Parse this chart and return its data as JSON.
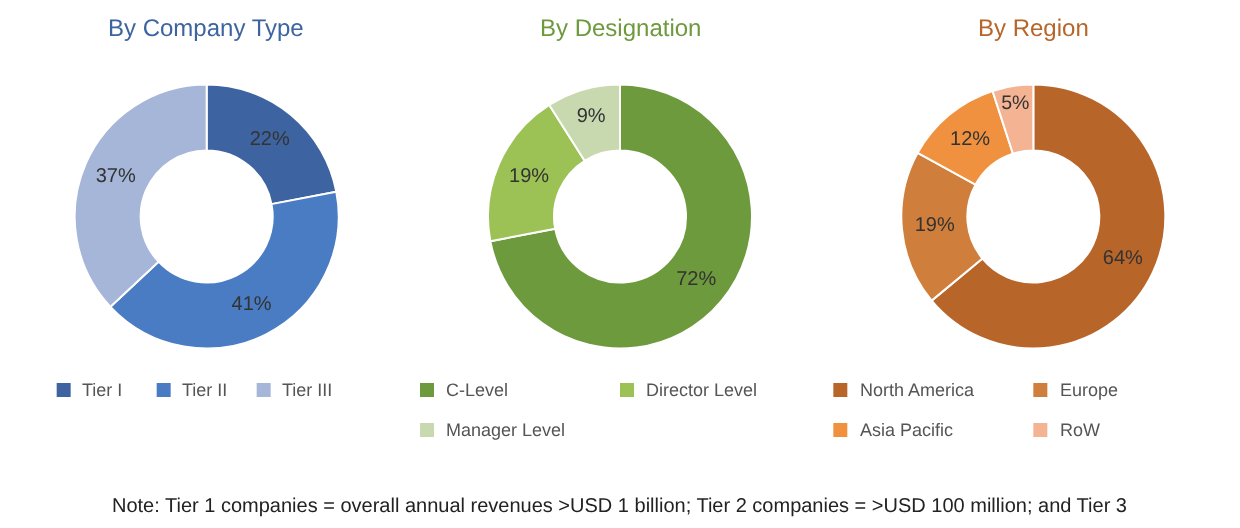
{
  "chart_data": [
    {
      "type": "donut",
      "title": "By Company Type",
      "categories": [
        "Tier I",
        "Tier II",
        "Tier III"
      ],
      "values": [
        22,
        41,
        37
      ],
      "colors": [
        "#3d64a0",
        "#4a7cc4",
        "#a6b6d8"
      ],
      "value_labels": [
        "22%",
        "41%",
        "37%"
      ],
      "legend": "bottom",
      "annotations": [
        "Note: Tier 1 companies = overall annual revenues >USD 1 billion; Tier 2 companies = >USD 100 million; and Tier 3"
      ]
    },
    {
      "type": "donut",
      "title": "By Designation",
      "categories": [
        "C-Level",
        "Director Level",
        "Manager Level"
      ],
      "values": [
        72,
        19,
        9
      ],
      "colors": [
        "#6e9a3e",
        "#9cc155",
        "#c8d9b0"
      ],
      "value_labels": [
        "72%",
        "19%",
        "9%"
      ],
      "legend": "bottom"
    },
    {
      "type": "donut",
      "title": "By Region",
      "categories": [
        "North America",
        "Europe",
        "Asia Pacific",
        "RoW"
      ],
      "values": [
        64,
        19,
        12,
        5
      ],
      "colors": [
        "#b8652a",
        "#d07e3b",
        "#f0913f",
        "#f4b392"
      ],
      "value_labels": [
        "64%",
        "19%",
        "12%",
        "5%"
      ],
      "legend": "bottom"
    }
  ]
}
